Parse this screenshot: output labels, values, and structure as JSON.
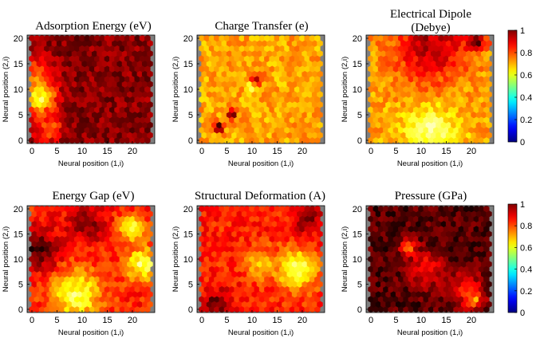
{
  "chart_data": [
    {
      "type": "heatmap",
      "title": "Adsorption Energy (eV)",
      "xlabel": "Neural position (1,i)",
      "ylabel": "Neural position (2,i)",
      "xticks": [
        "0",
        "5",
        "10",
        "15",
        "20"
      ],
      "yticks": [
        "0",
        "5",
        "10",
        "15",
        "20"
      ],
      "xlim": [
        0,
        23
      ],
      "ylim": [
        0,
        20
      ],
      "colormap": "hot",
      "value_range": [
        0,
        1
      ],
      "features": [
        {
          "x": 1.5,
          "y": 8.5,
          "value": 0.92,
          "spread": 2.2
        },
        {
          "x": 0.5,
          "y": 12.5,
          "value": 0.55,
          "spread": 2.5
        },
        {
          "x": 3.5,
          "y": 2.5,
          "value": 0.5,
          "spread": 2.0
        }
      ],
      "baseline": 0.2
    },
    {
      "type": "heatmap",
      "title": "Charge Transfer (e)",
      "xlabel": "Neural position (1,i)",
      "ylabel": "Neural position (2,i)",
      "xticks": [
        "0",
        "5",
        "10",
        "15",
        "20"
      ],
      "yticks": [
        "0",
        "5",
        "10",
        "15",
        "20"
      ],
      "xlim": [
        0,
        23
      ],
      "ylim": [
        0,
        20
      ],
      "colormap": "hot",
      "value_range": [
        0,
        1
      ],
      "features": [
        {
          "x": 10,
          "y": 10.5,
          "value": 0.88,
          "spread": 0.8
        },
        {
          "x": 3.5,
          "y": 2.5,
          "value": 0.05,
          "spread": 0.7
        },
        {
          "x": 6,
          "y": 5,
          "value": 0.1,
          "spread": 0.7
        },
        {
          "x": 11,
          "y": 12,
          "value": 0.3,
          "spread": 0.9
        }
      ],
      "baseline": 0.62
    },
    {
      "type": "heatmap",
      "title": "Electrical Dipole (Debye)",
      "xlabel": "Neural position (1,i)",
      "ylabel": "Neural position (2,i)",
      "xticks": [
        "0",
        "5",
        "10",
        "15",
        "20"
      ],
      "yticks": [
        "0",
        "5",
        "10",
        "15",
        "20"
      ],
      "xlim": [
        0,
        23
      ],
      "ylim": [
        0,
        20
      ],
      "colormap": "hot",
      "value_range": [
        0,
        1
      ],
      "features": [
        {
          "x": 12,
          "y": 18.5,
          "value": 0.25,
          "spread": 5.0
        },
        {
          "x": 21,
          "y": 19.5,
          "value": 0.08,
          "spread": 1.2
        },
        {
          "x": 12,
          "y": 1.5,
          "value": 0.88,
          "spread": 3.5
        }
      ],
      "baseline": 0.62
    },
    {
      "type": "heatmap",
      "title": "Energy Gap (eV)",
      "xlabel": "Neural position (1,i)",
      "ylabel": "Neural position (2,i)",
      "xticks": [
        "0",
        "5",
        "10",
        "15",
        "20"
      ],
      "yticks": [
        "0",
        "5",
        "10",
        "15",
        "20"
      ],
      "xlim": [
        0,
        23
      ],
      "ylim": [
        0,
        20
      ],
      "colormap": "hot",
      "value_range": [
        0,
        1
      ],
      "features": [
        {
          "x": 9,
          "y": 3,
          "value": 0.82,
          "spread": 3.5
        },
        {
          "x": 22,
          "y": 9,
          "value": 0.85,
          "spread": 2.2
        },
        {
          "x": 20,
          "y": 16,
          "value": 0.8,
          "spread": 1.8
        },
        {
          "x": 1,
          "y": 12,
          "value": 0.1,
          "spread": 3.0
        },
        {
          "x": 11,
          "y": 17,
          "value": 0.2,
          "spread": 2.5
        }
      ],
      "baseline": 0.42
    },
    {
      "type": "heatmap",
      "title": "Structural Deformation (A)",
      "xlabel": "Neural position (1,i)",
      "ylabel": "Neural position (2,i)",
      "xticks": [
        "0",
        "5",
        "10",
        "15",
        "20"
      ],
      "yticks": [
        "0",
        "5",
        "10",
        "15",
        "20"
      ],
      "xlim": [
        0,
        23
      ],
      "ylim": [
        0,
        20
      ],
      "colormap": "hot",
      "value_range": [
        0,
        1
      ],
      "features": [
        {
          "x": 19,
          "y": 8,
          "value": 0.85,
          "spread": 2.8
        },
        {
          "x": 12,
          "y": 9,
          "value": 0.7,
          "spread": 2.0
        },
        {
          "x": 21,
          "y": 18,
          "value": 0.15,
          "spread": 1.8
        },
        {
          "x": 3,
          "y": 1,
          "value": 0.15,
          "spread": 2.0
        }
      ],
      "baseline": 0.42
    },
    {
      "type": "heatmap",
      "title": "Pressure (GPa)",
      "xlabel": "Neural position (1,i)",
      "ylabel": "Neural position (2,i)",
      "xticks": [
        "0",
        "5",
        "10",
        "15",
        "20"
      ],
      "yticks": [
        "0",
        "5",
        "10",
        "15",
        "20"
      ],
      "xlim": [
        0,
        23
      ],
      "ylim": [
        0,
        20
      ],
      "colormap": "hot",
      "value_range": [
        0,
        1
      ],
      "features": [
        {
          "x": 20.5,
          "y": 2,
          "value": 0.9,
          "spread": 1.0
        },
        {
          "x": 7.5,
          "y": 12.5,
          "value": 0.55,
          "spread": 1.2
        },
        {
          "x": 11,
          "y": 8,
          "value": 0.4,
          "spread": 2.5
        },
        {
          "x": 19,
          "y": 4,
          "value": 0.4,
          "spread": 2.5
        }
      ],
      "baseline": 0.12
    }
  ],
  "colorbars": [
    {
      "colormap": "jet",
      "ticks": [
        "1",
        "0.8",
        "0.6",
        "0.4",
        "0.2",
        "0"
      ]
    },
    {
      "colormap": "jet",
      "ticks": [
        "1",
        "0.8",
        "0.6",
        "0.4",
        "0.2",
        "0"
      ]
    }
  ]
}
